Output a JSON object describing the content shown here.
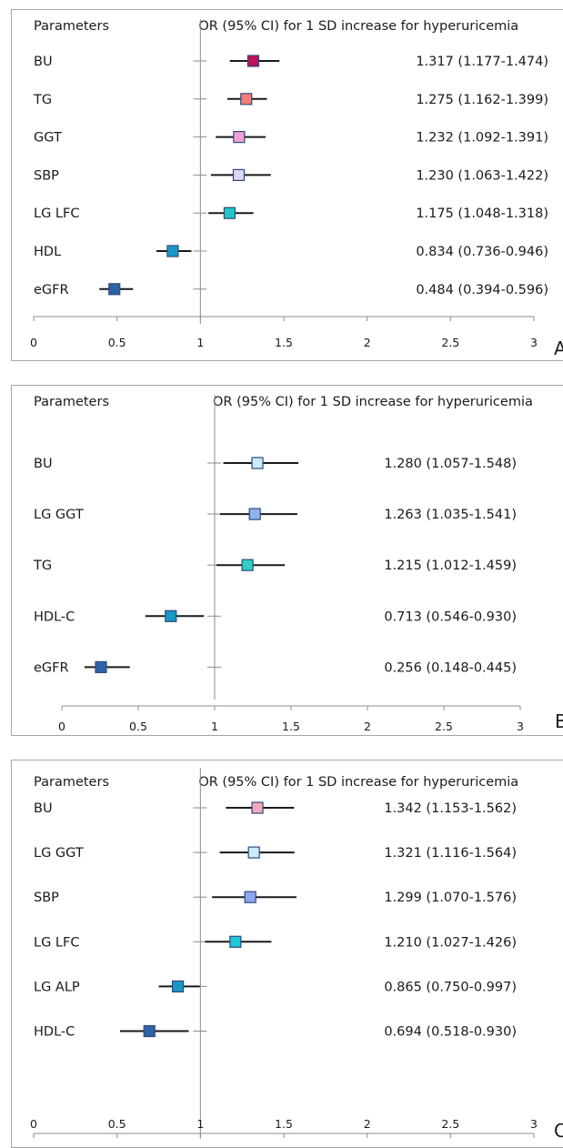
{
  "chart_data": [
    {
      "type": "forest",
      "panel_label": "A",
      "header_left": "Parameters",
      "header_right": "OR (95% CI) for 1 SD increase for hyperuricemia",
      "x_ticks": [
        "0",
        "0.5",
        "1",
        "1.5",
        "2",
        "2.5",
        "3"
      ],
      "xlim": [
        0,
        3
      ],
      "reference_line": 1,
      "rows": [
        {
          "name": "BU",
          "or": 1.317,
          "low": 1.177,
          "high": 1.474,
          "label": "1.317 (1.177-1.474)",
          "color": "#c0135a"
        },
        {
          "name": "TG",
          "or": 1.275,
          "low": 1.162,
          "high": 1.399,
          "label": "1.275 (1.162-1.399)",
          "color": "#f47c7c"
        },
        {
          "name": "GGT",
          "or": 1.232,
          "low": 1.092,
          "high": 1.391,
          "label": "1.232 (1.092-1.391)",
          "color": "#f2a0d4"
        },
        {
          "name": "SBP",
          "or": 1.23,
          "low": 1.063,
          "high": 1.422,
          "label": "1.230 (1.063-1.422)",
          "color": "#ddd6f7"
        },
        {
          "name": "LG LFC",
          "or": 1.175,
          "low": 1.048,
          "high": 1.318,
          "label": "1.175 (1.048-1.318)",
          "color": "#1fc8c8"
        },
        {
          "name": "HDL",
          "or": 0.834,
          "low": 0.736,
          "high": 0.946,
          "label": "0.834 (0.736-0.946)",
          "color": "#1799c4"
        },
        {
          "name": "eGFR",
          "or": 0.484,
          "low": 0.394,
          "high": 0.596,
          "label": "0.484 (0.394-0.596)",
          "color": "#2c64a8"
        }
      ]
    },
    {
      "type": "forest",
      "panel_label": "B",
      "header_left": "Parameters",
      "header_right": "OR (95% CI) for 1 SD increase for hyperuricemia",
      "x_ticks": [
        "0",
        "0.5",
        "1",
        "1.5",
        "2",
        "2.5",
        "3"
      ],
      "xlim": [
        0,
        3
      ],
      "reference_line": 1,
      "rows": [
        {
          "name": "BU",
          "or": 1.28,
          "low": 1.057,
          "high": 1.548,
          "label": "1.280 (1.057-1.548)",
          "color": "#c8ecfa"
        },
        {
          "name": "LG GGT",
          "or": 1.263,
          "low": 1.035,
          "high": 1.541,
          "label": "1.263 (1.035-1.541)",
          "color": "#8fb4ee"
        },
        {
          "name": "TG",
          "or": 1.215,
          "low": 1.012,
          "high": 1.459,
          "label": "1.215 (1.012-1.459)",
          "color": "#2fd0c0"
        },
        {
          "name": "HDL-C",
          "or": 0.713,
          "low": 0.546,
          "high": 0.93,
          "label": "0.713 (0.546-0.930)",
          "color": "#1799c4"
        },
        {
          "name": "eGFR",
          "or": 0.256,
          "low": 0.148,
          "high": 0.445,
          "label": "0.256 (0.148-0.445)",
          "color": "#2c64a8"
        }
      ]
    },
    {
      "type": "forest",
      "panel_label": "C",
      "header_left": "Parameters",
      "header_right": "OR (95% CI) for 1 SD increase for hyperuricemia",
      "x_ticks": [
        "0",
        "0.5",
        "1",
        "1.5",
        "2",
        "2.5",
        "3"
      ],
      "xlim": [
        0,
        3
      ],
      "reference_line": 1,
      "rows": [
        {
          "name": "BU",
          "or": 1.342,
          "low": 1.153,
          "high": 1.562,
          "label": "1.342 (1.153-1.562)",
          "color": "#f7a8b8"
        },
        {
          "name": "LG GGT",
          "or": 1.321,
          "low": 1.116,
          "high": 1.564,
          "label": "1.321 (1.116-1.564)",
          "color": "#c8ecfa"
        },
        {
          "name": "SBP",
          "or": 1.299,
          "low": 1.07,
          "high": 1.576,
          "label": "1.299 (1.070-1.576)",
          "color": "#8fa6ee"
        },
        {
          "name": "LG LFC",
          "or": 1.21,
          "low": 1.027,
          "high": 1.426,
          "label": "1.210 (1.027-1.426)",
          "color": "#1fc8d8"
        },
        {
          "name": "LG ALP",
          "or": 0.865,
          "low": 0.75,
          "high": 0.997,
          "label": "0.865 (0.750-0.997)",
          "color": "#1799c4"
        },
        {
          "name": "HDL-C",
          "or": 0.694,
          "low": 0.518,
          "high": 0.93,
          "label": "0.694 (0.518-0.930)",
          "color": "#2c64a8"
        }
      ]
    }
  ]
}
